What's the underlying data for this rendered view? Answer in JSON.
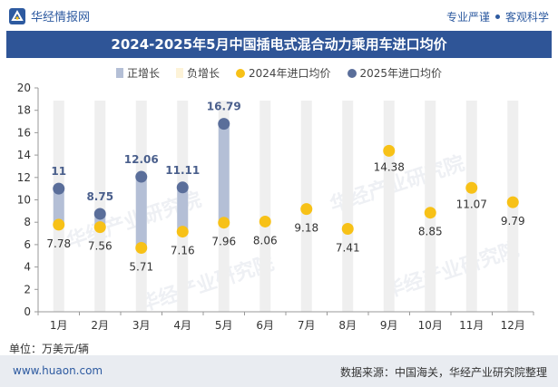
{
  "header": {
    "brand": "华经情报网",
    "slogan_left": "专业严谨",
    "slogan_right": "客观科学"
  },
  "footer": {
    "unit": "单位：万美元/辆",
    "site": "www.huaon.com",
    "source": "数据来源：中国海关，华经产业研究院整理"
  },
  "colors": {
    "title_bg": "#2f5597",
    "positive": "#b4bfd6",
    "negative": "#fdf3d8",
    "s2024": "#f7c117",
    "s2025": "#5a6e9a",
    "track": "#efefef"
  },
  "chart_data": {
    "type": "scatter",
    "title": "2024-2025年5月中国插电式混合动力乘用车进口均价",
    "categories": [
      "1月",
      "2月",
      "3月",
      "4月",
      "5月",
      "6月",
      "7月",
      "8月",
      "9月",
      "10月",
      "11月",
      "12月"
    ],
    "series": [
      {
        "name": "2024年进口均价",
        "values": [
          7.78,
          7.56,
          5.71,
          7.16,
          7.96,
          8.06,
          9.18,
          7.41,
          14.38,
          8.85,
          11.07,
          9.79
        ]
      },
      {
        "name": "2025年进口均价",
        "values": [
          11,
          8.75,
          12.06,
          11.11,
          16.79,
          null,
          null,
          null,
          null,
          null,
          null,
          null
        ]
      }
    ],
    "change_legend": {
      "positive": "正增长",
      "negative": "负增长"
    },
    "ylim": [
      0,
      20
    ],
    "yticks": [
      0,
      2,
      4,
      6,
      8,
      10,
      12,
      14,
      16,
      18,
      20
    ],
    "xlabel": "",
    "ylabel": "",
    "watermark": "华经产业研究院",
    "watermark_url": "www.huaon.com"
  }
}
